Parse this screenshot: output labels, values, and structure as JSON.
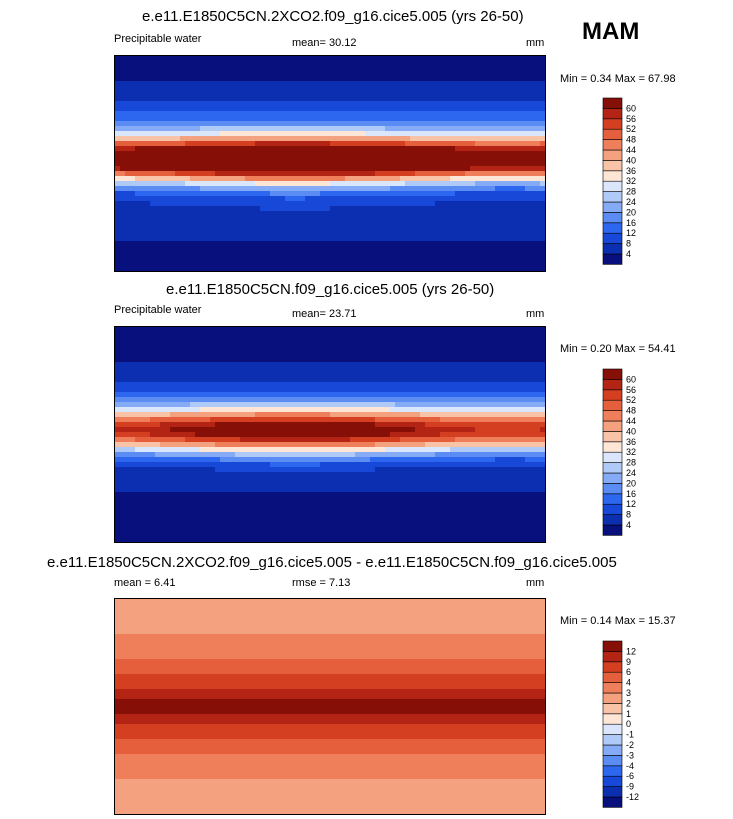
{
  "season": "MAM",
  "panels": [
    {
      "title": "e.e11.E1850C5CN.2XCO2.f09_g16.cice5.005 (yrs 26-50)",
      "left_label": "Precipitable water",
      "stat_label": "mean=  30.12",
      "units": "mm",
      "minmax": "Min =   0.34 Max =  67.98"
    },
    {
      "title": "e.e11.E1850C5CN.f09_g16.cice5.005 (yrs 26-50)",
      "left_label": "Precipitable water",
      "stat_label": "mean=  23.71",
      "units": "mm",
      "minmax": "Min =  0.20 Max =  54.41"
    },
    {
      "title": "e.e11.E1850C5CN.2XCO2.f09_g16.cice5.005 - e.e11.E1850C5CN.f09_g16.cice5.005",
      "left_label": "mean =   6.41",
      "stat_label": "rmse =   7.13",
      "units": "mm",
      "minmax": "Min =  0.14 Max =  15.37"
    }
  ],
  "chart_data": [
    {
      "type": "heatmap",
      "title": "e.e11.E1850C5CN.2XCO2.f09_g16.cice5.005 (yrs 26-50)",
      "variable": "Precipitable water",
      "units": "mm",
      "mean": 30.12,
      "min": 0.34,
      "max": 67.98,
      "colorbar_levels": [
        4,
        8,
        12,
        16,
        20,
        24,
        28,
        32,
        36,
        40,
        44,
        48,
        52,
        56,
        60
      ],
      "colorbar_colors": [
        "#08107e",
        "#0b2fb0",
        "#1848d8",
        "#2e67ef",
        "#5a8cf4",
        "#86abf6",
        "#b0caf8",
        "#d9e6fb",
        "#fde6d6",
        "#f9c3a7",
        "#f4a17f",
        "#ee7f5a",
        "#e65f3c",
        "#d43f22",
        "#b32414",
        "#860f08"
      ]
    },
    {
      "type": "heatmap",
      "title": "e.e11.E1850C5CN.f09_g16.cice5.005 (yrs 26-50)",
      "variable": "Precipitable water",
      "units": "mm",
      "mean": 23.71,
      "min": 0.2,
      "max": 54.41,
      "colorbar_levels": [
        4,
        8,
        12,
        16,
        20,
        24,
        28,
        32,
        36,
        40,
        44,
        48,
        52,
        56,
        60
      ],
      "colorbar_colors": [
        "#08107e",
        "#0b2fb0",
        "#1848d8",
        "#2e67ef",
        "#5a8cf4",
        "#86abf6",
        "#b0caf8",
        "#d9e6fb",
        "#fde6d6",
        "#f9c3a7",
        "#f4a17f",
        "#ee7f5a",
        "#e65f3c",
        "#d43f22",
        "#b32414",
        "#860f08"
      ]
    },
    {
      "type": "heatmap",
      "title": "e.e11.E1850C5CN.2XCO2.f09_g16.cice5.005 - e.e11.E1850C5CN.f09_g16.cice5.005",
      "units": "mm",
      "mean": 6.41,
      "rmse": 7.13,
      "min": 0.14,
      "max": 15.37,
      "colorbar_levels": [
        -12,
        -9,
        -6,
        -4,
        -3,
        -2,
        -1,
        0,
        1,
        2,
        3,
        4,
        6,
        9,
        12
      ],
      "colorbar_colors": [
        "#08107e",
        "#0b2fb0",
        "#1848d8",
        "#2e67ef",
        "#5a8cf4",
        "#86abf6",
        "#b0caf8",
        "#d9e6fb",
        "#fde6d6",
        "#f9c3a7",
        "#f4a17f",
        "#ee7f5a",
        "#e65f3c",
        "#d43f22",
        "#b32414",
        "#860f08"
      ]
    }
  ]
}
